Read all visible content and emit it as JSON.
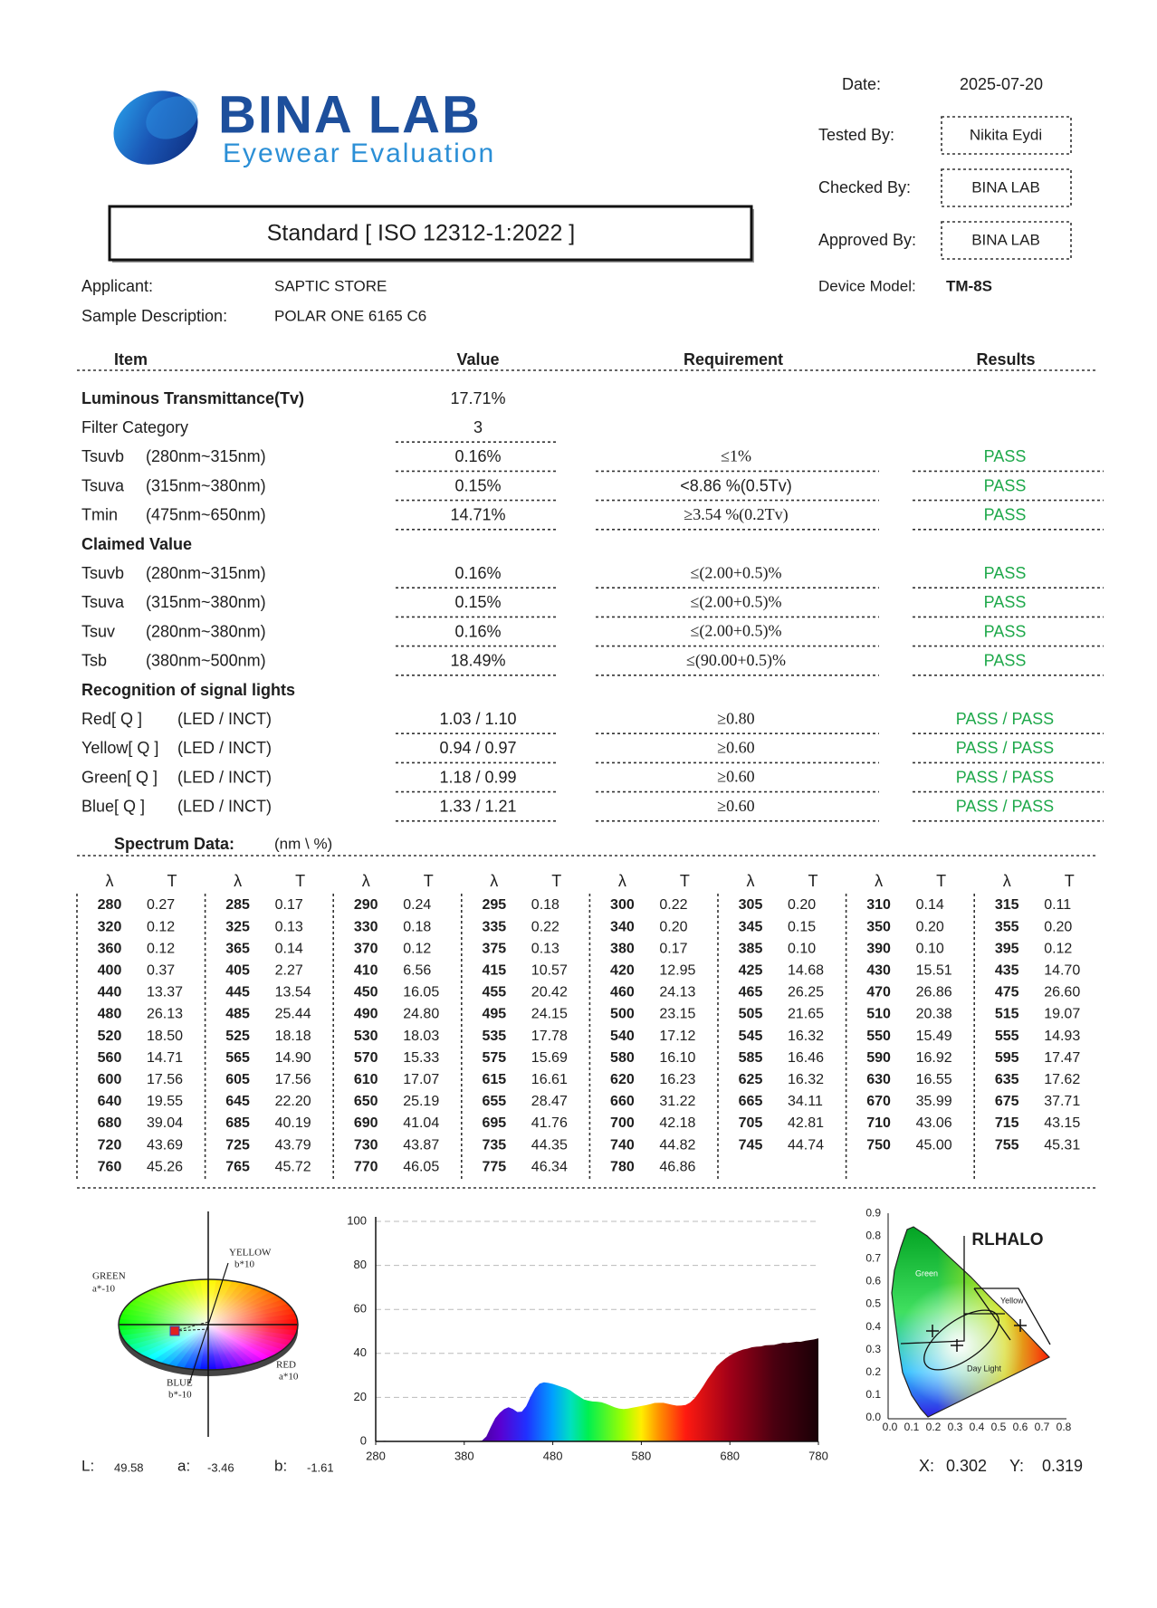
{
  "header": {
    "brand": "BINA LAB",
    "tagline": "Eyewear Evaluation",
    "standard": "Standard [ ISO 12312-1:2022 ]"
  },
  "info": {
    "date": {
      "label": "Date:",
      "value": "2025-07-20"
    },
    "tested_by": {
      "label": "Tested By:",
      "value": "Nikita Eydi"
    },
    "checked_by": {
      "label": "Checked By:",
      "value": "BINA LAB"
    },
    "approved_by": {
      "label": "Approved By:",
      "value": "BINA LAB"
    },
    "device_model": {
      "label": "Device Model:",
      "value": "TM-8S"
    },
    "applicant": {
      "label": "Applicant:",
      "value": "SAPTIC STORE"
    },
    "sample": {
      "label": "Sample Description:",
      "value": "POLAR ONE 6165 C6"
    }
  },
  "table": {
    "headers": [
      "Item",
      "Value",
      "Requirement",
      "Results"
    ],
    "rows": [
      {
        "heading": "Luminous Transmittance(Tv)",
        "value": "17.71%"
      },
      {
        "item": "Filter Category",
        "value": "3"
      },
      {
        "item": "Tsuvb",
        "range": "(280nm~315nm)",
        "value": "0.16%",
        "requirement": "≤1%",
        "result": "PASS"
      },
      {
        "item": "Tsuva",
        "range": "(315nm~380nm)",
        "value": "0.15%",
        "requirement": "<8.86 %(0.5Tv)",
        "result": "PASS"
      },
      {
        "item": "Tmin",
        "range": "(475nm~650nm)",
        "value": "14.71%",
        "requirement": "≥3.54 %(0.2Tv)",
        "result": "PASS"
      },
      {
        "heading": "Claimed Value"
      },
      {
        "item": "Tsuvb",
        "range": "(280nm~315nm)",
        "value": "0.16%",
        "requirement": "≤(2.00+0.5)%",
        "result": "PASS"
      },
      {
        "item": "Tsuva",
        "range": "(315nm~380nm)",
        "value": "0.15%",
        "requirement": "≤(2.00+0.5)%",
        "result": "PASS"
      },
      {
        "item": "Tsuv",
        "range": "(280nm~380nm)",
        "value": "0.16%",
        "requirement": "≤(2.00+0.5)%",
        "result": "PASS"
      },
      {
        "item": "Tsb",
        "range": "(380nm~500nm)",
        "value": "18.49%",
        "requirement": "≤(90.00+0.5)%",
        "result": "PASS"
      },
      {
        "heading": "Recognition of signal lights"
      },
      {
        "item": "Red[ Q ]",
        "range": "(LED / INCT)",
        "value": "1.03 / 1.10",
        "requirement": "≥0.80",
        "result": "PASS / PASS"
      },
      {
        "item": "Yellow[ Q ]",
        "range": "(LED / INCT)",
        "value": "0.94 / 0.97",
        "requirement": "≥0.60",
        "result": "PASS / PASS"
      },
      {
        "item": "Green[ Q ]",
        "range": "(LED / INCT)",
        "value": "1.18 / 0.99",
        "requirement": "≥0.60",
        "result": "PASS / PASS"
      },
      {
        "item": "Blue[ Q ]",
        "range": "(LED / INCT)",
        "value": "1.33 / 1.21",
        "requirement": "≥0.60",
        "result": "PASS / PASS"
      }
    ]
  },
  "spectrum": {
    "title": "Spectrum Data:",
    "unit": "(nm \\ %)",
    "col_headers": [
      "λ",
      "T"
    ],
    "wavelengths": [
      280,
      285,
      290,
      295,
      300,
      305,
      310,
      315,
      320,
      325,
      330,
      335,
      340,
      345,
      350,
      355,
      360,
      365,
      370,
      375,
      380,
      385,
      390,
      395,
      400,
      405,
      410,
      415,
      420,
      425,
      430,
      435,
      440,
      445,
      450,
      455,
      460,
      465,
      470,
      475,
      480,
      485,
      490,
      495,
      500,
      505,
      510,
      515,
      520,
      525,
      530,
      535,
      540,
      545,
      550,
      555,
      560,
      565,
      570,
      575,
      580,
      585,
      590,
      595,
      600,
      605,
      610,
      615,
      620,
      625,
      630,
      635,
      640,
      645,
      650,
      655,
      660,
      665,
      670,
      675,
      680,
      685,
      690,
      695,
      700,
      705,
      710,
      715,
      720,
      725,
      730,
      735,
      740,
      745,
      750,
      755,
      760,
      765,
      770,
      775,
      780
    ],
    "T": [
      "0.27",
      "0.17",
      "0.24",
      "0.18",
      "0.22",
      "0.20",
      "0.14",
      "0.11",
      "0.12",
      "0.13",
      "0.18",
      "0.22",
      "0.20",
      "0.15",
      "0.20",
      "0.20",
      "0.12",
      "0.14",
      "0.12",
      "0.13",
      "0.17",
      "0.10",
      "0.10",
      "0.12",
      "0.37",
      "2.27",
      "6.56",
      "10.57",
      "12.95",
      "14.68",
      "15.51",
      "14.70",
      "13.37",
      "13.54",
      "16.05",
      "20.42",
      "24.13",
      "26.25",
      "26.86",
      "26.60",
      "26.13",
      "25.44",
      "24.80",
      "24.15",
      "23.15",
      "21.65",
      "20.38",
      "19.07",
      "18.50",
      "18.18",
      "18.03",
      "17.78",
      "17.12",
      "16.32",
      "15.49",
      "14.93",
      "14.71",
      "14.90",
      "15.33",
      "15.69",
      "16.10",
      "16.46",
      "16.92",
      "17.47",
      "17.56",
      "17.56",
      "17.07",
      "16.61",
      "16.23",
      "16.32",
      "16.55",
      "17.62",
      "19.55",
      "22.20",
      "25.19",
      "28.47",
      "31.22",
      "34.11",
      "35.99",
      "37.71",
      "39.04",
      "40.19",
      "41.04",
      "41.76",
      "42.18",
      "42.81",
      "43.06",
      "43.15",
      "43.69",
      "43.79",
      "43.87",
      "44.35",
      "44.82",
      "44.74",
      "45.00",
      "45.31",
      "45.26",
      "45.72",
      "46.05",
      "46.34",
      "46.86"
    ]
  },
  "color_space": {
    "axes": [
      {
        "name": "YELLOW",
        "scale": "b*10"
      },
      {
        "name": "GREEN",
        "scale": "a*-10"
      },
      {
        "name": "RED",
        "scale": "a*10"
      },
      {
        "name": "BLUE",
        "scale": "b*-10"
      }
    ],
    "L": {
      "label": "L:",
      "value": "49.58"
    },
    "a": {
      "label": "a:",
      "value": "-3.46"
    },
    "b": {
      "label": "b:",
      "value": "-1.61"
    }
  },
  "spectrum_chart": {
    "xlim": [
      280,
      780
    ],
    "xticks": [
      280,
      380,
      480,
      580,
      680,
      780
    ],
    "ylim": [
      0,
      100
    ],
    "yticks": [
      0,
      20,
      40,
      60,
      80,
      100
    ]
  },
  "chromaticity": {
    "title": "RLHALO",
    "regions": [
      "Green",
      "Yellow",
      "Day Light"
    ],
    "xticks": [
      "0.0",
      "0.1",
      "0.2",
      "0.3",
      "0.4",
      "0.5",
      "0.6",
      "0.7",
      "0.8"
    ],
    "yticks": [
      "0.0",
      "0.1",
      "0.2",
      "0.3",
      "0.4",
      "0.5",
      "0.6",
      "0.7",
      "0.8",
      "0.9"
    ],
    "x": {
      "label": "X:",
      "value": "0.302"
    },
    "y": {
      "label": "Y:",
      "value": "0.319"
    }
  }
}
